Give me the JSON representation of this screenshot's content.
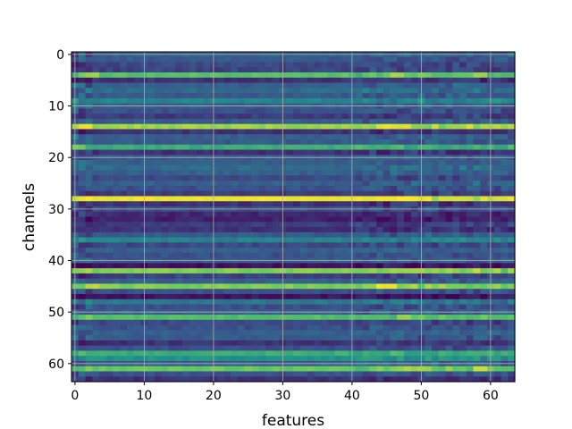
{
  "chart_data": {
    "type": "heatmap",
    "title": "",
    "xlabel": "features",
    "ylabel": "channels",
    "x_ticks": [
      0,
      10,
      20,
      30,
      40,
      50,
      60
    ],
    "y_ticks": [
      0,
      10,
      20,
      30,
      40,
      50,
      60
    ],
    "n_rows": 64,
    "n_cols": 64,
    "colormap": "viridis",
    "grid": true,
    "y_axis_inverted": true,
    "value_range": [
      0,
      1
    ],
    "row_levels": [
      0.3,
      0.28,
      0.22,
      0.2,
      0.72,
      0.15,
      0.3,
      0.35,
      0.28,
      0.45,
      0.3,
      0.25,
      0.18,
      0.28,
      0.85,
      0.15,
      0.3,
      0.28,
      0.62,
      0.15,
      0.28,
      0.3,
      0.35,
      0.3,
      0.22,
      0.3,
      0.25,
      0.18,
      0.92,
      0.15,
      0.25,
      0.12,
      0.1,
      0.18,
      0.15,
      0.28,
      0.45,
      0.22,
      0.3,
      0.25,
      0.28,
      0.05,
      0.8,
      0.2,
      0.3,
      0.8,
      0.25,
      0.06,
      0.4,
      0.25,
      0.3,
      0.7,
      0.22,
      0.25,
      0.3,
      0.28,
      0.15,
      0.25,
      0.62,
      0.5,
      0.3,
      0.75,
      0.25,
      0.15
    ],
    "hot_spots": [
      {
        "row": 4,
        "col_start": 2,
        "col_end": 4,
        "value": 0.88
      },
      {
        "row": 4,
        "col_start": 46,
        "col_end": 48,
        "value": 0.88
      },
      {
        "row": 4,
        "col_start": 58,
        "col_end": 60,
        "value": 0.88
      },
      {
        "row": 14,
        "col_start": 1,
        "col_end": 3,
        "value": 1.0
      },
      {
        "row": 14,
        "col_start": 44,
        "col_end": 49,
        "value": 0.98
      },
      {
        "row": 18,
        "col_start": 0,
        "col_end": 2,
        "value": 0.82
      },
      {
        "row": 28,
        "col_start": 2,
        "col_end": 40,
        "value": 1.0
      },
      {
        "row": 28,
        "col_start": 40,
        "col_end": 52,
        "value": 1.0
      },
      {
        "row": 42,
        "col_start": 46,
        "col_end": 50,
        "value": 0.88
      },
      {
        "row": 45,
        "col_start": 2,
        "col_end": 4,
        "value": 0.92
      },
      {
        "row": 45,
        "col_start": 44,
        "col_end": 47,
        "value": 1.0
      },
      {
        "row": 51,
        "col_start": 47,
        "col_end": 49,
        "value": 0.85
      },
      {
        "row": 61,
        "col_start": 47,
        "col_end": 52,
        "value": 0.88
      },
      {
        "row": 61,
        "col_start": 58,
        "col_end": 60,
        "value": 0.95
      }
    ]
  }
}
